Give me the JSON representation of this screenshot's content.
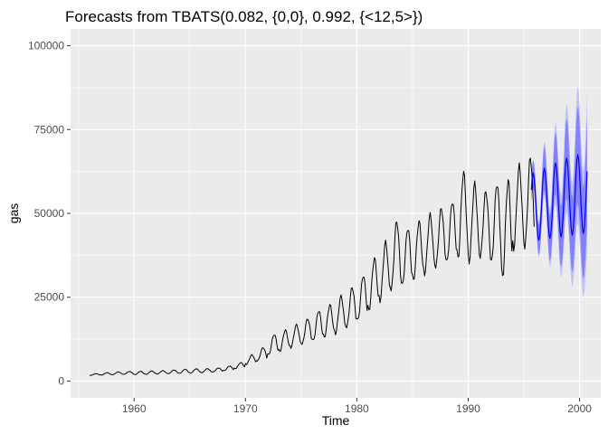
{
  "chart_data": {
    "type": "line",
    "title": "Forecasts from TBATS(0.082, {0,0}, 0.992, {<12,5>})",
    "xlabel": "Time",
    "ylabel": "gas",
    "xlim": [
      1954.3,
      2001.9
    ],
    "ylim": [
      -5000,
      105000
    ],
    "x_ticks": [
      1960,
      1970,
      1980,
      1990,
      2000
    ],
    "x_tick_labels": [
      "1960",
      "1970",
      "1980",
      "1990",
      "2000"
    ],
    "y_ticks": [
      0,
      25000,
      50000,
      75000,
      100000
    ],
    "y_tick_labels": [
      "0",
      "25000",
      "50000",
      "75000",
      "100000"
    ],
    "grid": true,
    "legend": "none",
    "series": [
      {
        "role": "observed",
        "color": "#000000",
        "start": 1956,
        "frequency": 12,
        "annual_peaks": [
          2200,
          2500,
          2750,
          2850,
          2900,
          3000,
          3100,
          3300,
          3500,
          3650,
          3700,
          3900,
          4500,
          5500,
          7800,
          10000,
          13900,
          15200,
          16800,
          18600,
          21000,
          22700,
          25300,
          28000,
          31500,
          36600,
          41400,
          47700,
          45600,
          47600,
          49600,
          51600,
          53500,
          62300,
          58800,
          56600,
          58900,
          59900,
          64100,
          66600
        ],
        "annual_troughs": [
          1700,
          1800,
          1900,
          2000,
          1900,
          2000,
          2100,
          2200,
          2300,
          2400,
          2500,
          2700,
          3100,
          3700,
          5000,
          6000,
          7800,
          8800,
          10000,
          11000,
          12000,
          13000,
          14200,
          16000,
          18000,
          21000,
          24000,
          27200,
          28500,
          30000,
          32000,
          34000,
          35500,
          36500,
          35700,
          37000,
          35300,
          30800,
          39500,
          40000
        ]
      },
      {
        "role": "forecast",
        "color": "#0000ff",
        "start": 1995.67,
        "frequency": 12,
        "annual_peaks": [
          62000,
          63500,
          65000,
          66500,
          67500,
          68600
        ],
        "annual_troughs": [
          42000,
          42500,
          43000,
          43500,
          44000,
          44500
        ],
        "interval_colors": {
          "pi95": "#c1c1ff",
          "pi80": "#8282ff"
        },
        "pi95_halfwidth_growth_per_year": 3800,
        "pi80_halfwidth_growth_per_year": 2500
      }
    ]
  }
}
